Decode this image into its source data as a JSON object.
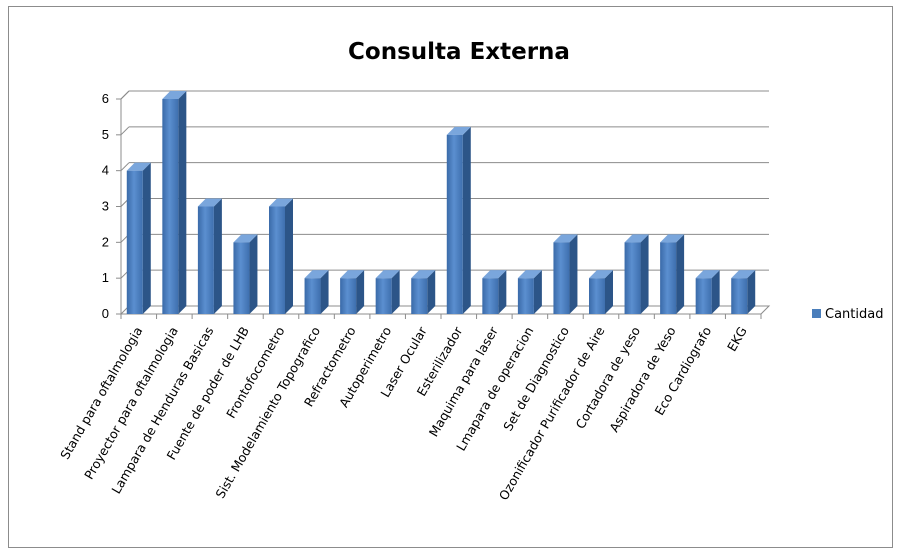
{
  "chart_data": {
    "type": "bar",
    "title": "Consulta Externa",
    "xlabel": "",
    "ylabel": "",
    "ylim": [
      0,
      6
    ],
    "yticks": [
      0,
      1,
      2,
      3,
      4,
      5,
      6
    ],
    "grid": true,
    "legend_position": "right",
    "categories": [
      "Stand para oftalmologia",
      "Proyector para oftalmologia",
      "Lampara de Henduras Basicas",
      "Fuente de poder de LHB",
      "Frontofocometro",
      "Sist. Modelamiento Topografico",
      "Refractometro",
      "Autoperimetro",
      "Laser Ocular",
      "Esterilizador",
      "Maquima para laser",
      "Lmapara de operacion",
      "Set de Diagnostico",
      "Ozonificador Purificador de Aire",
      "Cortadora de yeso",
      "Aspiradora de Yeso",
      "Eco Cardiografo",
      "EKG"
    ],
    "series": [
      {
        "name": "Cantidad",
        "color": "#4a7ebb",
        "values": [
          4,
          6,
          3,
          2,
          3,
          1,
          1,
          1,
          1,
          5,
          1,
          1,
          2,
          1,
          2,
          2,
          1,
          1
        ]
      }
    ]
  }
}
